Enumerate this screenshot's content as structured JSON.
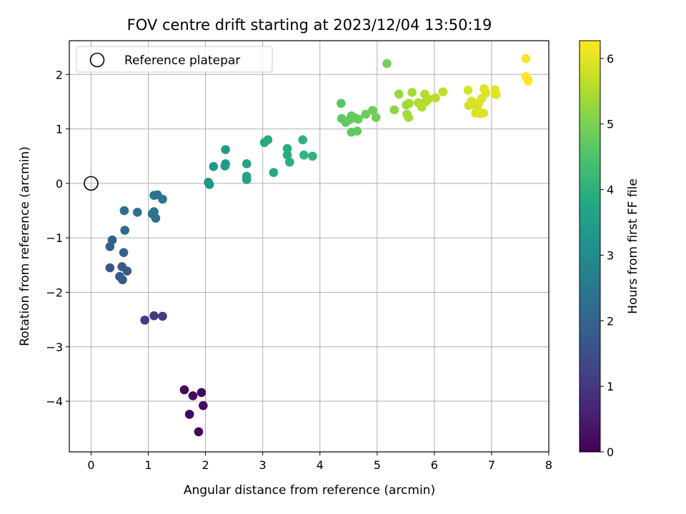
{
  "chart_data": {
    "type": "scatter",
    "title": "FOV centre drift starting at 2023/12/04 13:50:19",
    "xlabel": "Angular distance from reference (arcmin)",
    "ylabel": "Rotation from reference (arcmin)",
    "xlim": [
      -0.38,
      8.0
    ],
    "ylim": [
      -4.93,
      2.62
    ],
    "xticks": [
      0,
      1,
      2,
      3,
      4,
      5,
      6,
      7,
      8
    ],
    "yticks": [
      -4,
      -3,
      -2,
      -1,
      0,
      1,
      2
    ],
    "xtick_labels": [
      "0",
      "1",
      "2",
      "3",
      "4",
      "5",
      "6",
      "7",
      "8"
    ],
    "ytick_labels": [
      "−4",
      "−3",
      "−2",
      "−1",
      "0",
      "1",
      "2"
    ],
    "grid": true,
    "legend": {
      "placement": "top-left",
      "entries": [
        {
          "label": "Reference platepar",
          "marker": "open-circle"
        }
      ]
    },
    "reference_point": {
      "x": 0,
      "y": 0
    },
    "colorbar": {
      "label": "Hours from first FF file",
      "colormap": "viridis",
      "range": [
        0,
        6.27
      ],
      "ticks": [
        0,
        1,
        2,
        3,
        4,
        5,
        6
      ],
      "tick_labels": [
        "0",
        "1",
        "2",
        "3",
        "4",
        "5",
        "6"
      ]
    },
    "points": [
      {
        "x": 1.63,
        "y": -3.79,
        "hours": 0.1
      },
      {
        "x": 1.78,
        "y": -3.9,
        "hours": 0.2
      },
      {
        "x": 1.93,
        "y": -3.84,
        "hours": 0.15
      },
      {
        "x": 1.72,
        "y": -4.24,
        "hours": 0.1
      },
      {
        "x": 1.96,
        "y": -4.08,
        "hours": 0.2
      },
      {
        "x": 1.88,
        "y": -4.56,
        "hours": 0.05
      },
      {
        "x": 0.94,
        "y": -2.51,
        "hours": 1.05
      },
      {
        "x": 1.1,
        "y": -2.43,
        "hours": 1.1
      },
      {
        "x": 1.25,
        "y": -2.44,
        "hours": 1.1
      },
      {
        "x": 0.33,
        "y": -1.55,
        "hours": 1.7
      },
      {
        "x": 0.5,
        "y": -1.71,
        "hours": 1.75
      },
      {
        "x": 0.55,
        "y": -1.77,
        "hours": 1.8
      },
      {
        "x": 0.54,
        "y": -1.53,
        "hours": 1.8
      },
      {
        "x": 0.63,
        "y": -1.61,
        "hours": 1.8
      },
      {
        "x": 0.57,
        "y": -1.27,
        "hours": 1.9
      },
      {
        "x": 0.33,
        "y": -1.16,
        "hours": 1.9
      },
      {
        "x": 0.37,
        "y": -1.04,
        "hours": 1.95
      },
      {
        "x": 0.59,
        "y": -0.86,
        "hours": 2.1
      },
      {
        "x": 0.58,
        "y": -0.5,
        "hours": 2.25
      },
      {
        "x": 0.81,
        "y": -0.53,
        "hours": 2.3
      },
      {
        "x": 1.07,
        "y": -0.56,
        "hours": 2.35
      },
      {
        "x": 1.1,
        "y": -0.52,
        "hours": 2.35
      },
      {
        "x": 1.13,
        "y": -0.64,
        "hours": 2.35
      },
      {
        "x": 1.1,
        "y": -0.22,
        "hours": 2.45
      },
      {
        "x": 1.16,
        "y": -0.21,
        "hours": 2.45
      },
      {
        "x": 1.25,
        "y": -0.29,
        "hours": 2.45
      },
      {
        "x": 2.05,
        "y": 0.02,
        "hours": 3.3
      },
      {
        "x": 2.07,
        "y": -0.02,
        "hours": 3.3
      },
      {
        "x": 2.14,
        "y": 0.31,
        "hours": 3.35
      },
      {
        "x": 2.34,
        "y": 0.32,
        "hours": 3.35
      },
      {
        "x": 2.35,
        "y": 0.36,
        "hours": 3.4
      },
      {
        "x": 2.35,
        "y": 0.62,
        "hours": 3.4
      },
      {
        "x": 2.72,
        "y": 0.36,
        "hours": 3.6
      },
      {
        "x": 2.72,
        "y": 0.13,
        "hours": 3.6
      },
      {
        "x": 2.72,
        "y": 0.07,
        "hours": 3.6
      },
      {
        "x": 3.03,
        "y": 0.75,
        "hours": 3.8
      },
      {
        "x": 3.09,
        "y": 0.8,
        "hours": 3.8
      },
      {
        "x": 3.19,
        "y": 0.2,
        "hours": 3.8
      },
      {
        "x": 3.43,
        "y": 0.64,
        "hours": 3.9
      },
      {
        "x": 3.43,
        "y": 0.52,
        "hours": 3.9
      },
      {
        "x": 3.47,
        "y": 0.39,
        "hours": 3.9
      },
      {
        "x": 3.7,
        "y": 0.8,
        "hours": 4.0
      },
      {
        "x": 3.72,
        "y": 0.52,
        "hours": 4.05
      },
      {
        "x": 3.87,
        "y": 0.5,
        "hours": 4.05
      },
      {
        "x": 4.37,
        "y": 1.47,
        "hours": 4.6
      },
      {
        "x": 4.38,
        "y": 1.19,
        "hours": 4.7
      },
      {
        "x": 4.45,
        "y": 1.12,
        "hours": 4.7
      },
      {
        "x": 4.52,
        "y": 1.17,
        "hours": 4.75
      },
      {
        "x": 4.55,
        "y": 1.24,
        "hours": 4.75
      },
      {
        "x": 4.62,
        "y": 1.2,
        "hours": 4.75
      },
      {
        "x": 4.55,
        "y": 0.94,
        "hours": 4.7
      },
      {
        "x": 4.65,
        "y": 0.96,
        "hours": 4.75
      },
      {
        "x": 4.67,
        "y": 1.18,
        "hours": 4.8
      },
      {
        "x": 4.8,
        "y": 1.27,
        "hours": 4.85
      },
      {
        "x": 4.92,
        "y": 1.34,
        "hours": 4.9
      },
      {
        "x": 4.98,
        "y": 1.21,
        "hours": 4.9
      },
      {
        "x": 5.17,
        "y": 2.2,
        "hours": 4.95
      },
      {
        "x": 5.3,
        "y": 1.35,
        "hours": 5.2
      },
      {
        "x": 5.38,
        "y": 1.64,
        "hours": 5.3
      },
      {
        "x": 5.51,
        "y": 1.44,
        "hours": 5.35
      },
      {
        "x": 5.52,
        "y": 1.27,
        "hours": 5.4
      },
      {
        "x": 5.55,
        "y": 1.21,
        "hours": 5.4
      },
      {
        "x": 5.56,
        "y": 1.47,
        "hours": 5.4
      },
      {
        "x": 5.61,
        "y": 1.67,
        "hours": 5.45
      },
      {
        "x": 5.72,
        "y": 1.48,
        "hours": 5.5
      },
      {
        "x": 5.78,
        "y": 1.4,
        "hours": 5.5
      },
      {
        "x": 5.83,
        "y": 1.64,
        "hours": 5.55
      },
      {
        "x": 5.85,
        "y": 1.5,
        "hours": 5.55
      },
      {
        "x": 5.9,
        "y": 1.55,
        "hours": 5.55
      },
      {
        "x": 6.02,
        "y": 1.57,
        "hours": 5.6
      },
      {
        "x": 6.15,
        "y": 1.68,
        "hours": 5.65
      },
      {
        "x": 6.59,
        "y": 1.71,
        "hours": 5.85
      },
      {
        "x": 6.6,
        "y": 1.43,
        "hours": 5.85
      },
      {
        "x": 6.65,
        "y": 1.51,
        "hours": 5.9
      },
      {
        "x": 6.68,
        "y": 1.46,
        "hours": 5.9
      },
      {
        "x": 6.72,
        "y": 1.29,
        "hours": 5.9
      },
      {
        "x": 6.75,
        "y": 1.38,
        "hours": 5.9
      },
      {
        "x": 6.78,
        "y": 1.48,
        "hours": 5.95
      },
      {
        "x": 6.8,
        "y": 1.28,
        "hours": 5.95
      },
      {
        "x": 6.83,
        "y": 1.56,
        "hours": 5.95
      },
      {
        "x": 6.86,
        "y": 1.29,
        "hours": 5.95
      },
      {
        "x": 6.87,
        "y": 1.74,
        "hours": 6.0
      },
      {
        "x": 6.9,
        "y": 1.66,
        "hours": 6.0
      },
      {
        "x": 7.06,
        "y": 1.72,
        "hours": 6.0
      },
      {
        "x": 7.08,
        "y": 1.63,
        "hours": 6.0
      },
      {
        "x": 7.6,
        "y": 2.29,
        "hours": 6.2
      },
      {
        "x": 7.6,
        "y": 1.96,
        "hours": 6.25
      },
      {
        "x": 7.63,
        "y": 1.91,
        "hours": 6.25
      },
      {
        "x": 7.64,
        "y": 1.88,
        "hours": 6.27
      }
    ]
  }
}
